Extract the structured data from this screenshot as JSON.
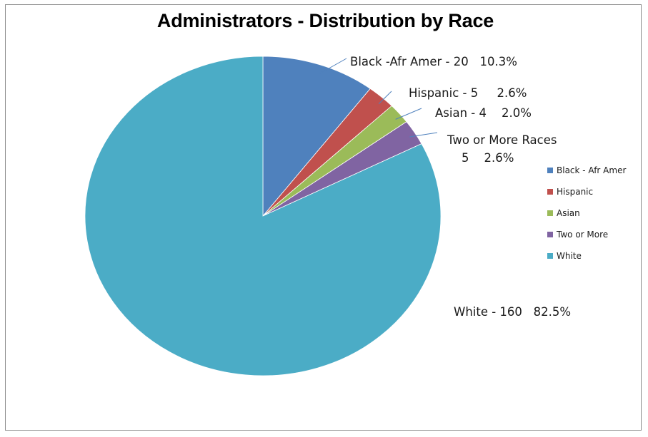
{
  "chart_data": {
    "type": "pie",
    "title": "Administrators - Distribution by Race",
    "categories": [
      "Black - Afr Amer",
      "Hispanic",
      "Asian",
      "Two or More",
      "White"
    ],
    "values": [
      20,
      5,
      4,
      5,
      160
    ],
    "percents": [
      "10.3%",
      "2.6%",
      "2.0%",
      "2.6%",
      "82.5%"
    ],
    "colors": [
      "#4f81bd",
      "#c0504d",
      "#9bbb59",
      "#8064a2",
      "#4bacc6"
    ],
    "legend_position": "right",
    "data_labels": [
      {
        "lines": [
          "Black -Afr Amer - 20   10.3%"
        ]
      },
      {
        "lines": [
          "Hispanic - 5     2.6%"
        ]
      },
      {
        "lines": [
          "Asian - 4    2.0%"
        ]
      },
      {
        "lines": [
          "Two or More Races",
          "5    2.6%"
        ]
      },
      {
        "lines": [
          "White - 160   82.5%"
        ]
      }
    ]
  }
}
